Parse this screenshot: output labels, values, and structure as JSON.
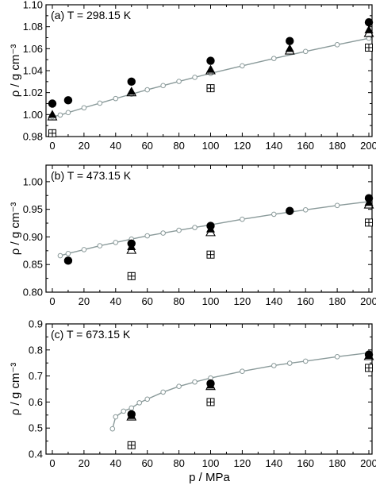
{
  "x_axis_label": "p / MPa",
  "chart_data": [
    {
      "type": "scatter",
      "title": "(a) T = 298.15 K",
      "xlabel": "",
      "ylabel": "ρ / g cm⁻³",
      "xlim": [
        -4,
        202
      ],
      "ylim": [
        0.98,
        1.1
      ],
      "xticks": [
        0,
        20,
        40,
        60,
        80,
        100,
        120,
        140,
        160,
        180,
        200
      ],
      "xtick_labels": [
        "0",
        "20",
        "40",
        "60",
        "80",
        "100",
        "120",
        "140",
        "160",
        "180",
        "200"
      ],
      "yticks": [
        0.98,
        1.0,
        1.02,
        1.04,
        1.06,
        1.08,
        1.1
      ],
      "ytick_labels": [
        "0.98",
        "1.00",
        "1.02",
        "1.04",
        "1.06",
        "1.08",
        "1.10"
      ],
      "series": [
        {
          "marker": "circle-open-line",
          "x": [
            0,
            5,
            10,
            20,
            30,
            40,
            50,
            60,
            70,
            80,
            90,
            100,
            120,
            140,
            160,
            180,
            200
          ],
          "y": [
            0.998,
            0.9996,
            1.0018,
            1.0062,
            1.0104,
            1.0146,
            1.0186,
            1.0226,
            1.0264,
            1.0302,
            1.0339,
            1.0375,
            1.0444,
            1.0511,
            1.0575,
            1.0636,
            1.0695
          ]
        },
        {
          "marker": "circle-filled",
          "x": [
            0,
            10,
            50,
            100,
            150,
            200
          ],
          "y": [
            1.01,
            1.013,
            1.03,
            1.049,
            1.067,
            1.084
          ]
        },
        {
          "marker": "triangle-filled",
          "x": [
            0,
            50,
            100,
            150,
            200
          ],
          "y": [
            1.0,
            1.021,
            1.041,
            1.06,
            1.077
          ]
        },
        {
          "marker": "triangle-open",
          "x": [
            0,
            50,
            100,
            150,
            200
          ],
          "y": [
            0.998,
            1.02,
            1.04,
            1.058,
            1.074
          ]
        },
        {
          "marker": "square-cross",
          "x": [
            0,
            100,
            200
          ],
          "y": [
            0.983,
            1.024,
            1.061
          ]
        }
      ]
    },
    {
      "type": "scatter",
      "title": "(b) T = 473.15 K",
      "xlabel": "",
      "ylabel": "ρ / g cm⁻³",
      "xlim": [
        -4,
        202
      ],
      "ylim": [
        0.8,
        1.03
      ],
      "xticks": [
        0,
        20,
        40,
        60,
        80,
        100,
        120,
        140,
        160,
        180,
        200
      ],
      "xtick_labels": [
        "0",
        "20",
        "40",
        "60",
        "80",
        "100",
        "120",
        "140",
        "160",
        "180",
        "200"
      ],
      "yticks": [
        0.8,
        0.85,
        0.9,
        0.95,
        1.0
      ],
      "ytick_labels": [
        "0.80",
        "0.85",
        "0.90",
        "0.95",
        "1.00"
      ],
      "series": [
        {
          "marker": "circle-open-line",
          "x": [
            5,
            10,
            20,
            30,
            40,
            50,
            60,
            70,
            80,
            90,
            100,
            120,
            140,
            160,
            180,
            200
          ],
          "y": [
            0.866,
            0.87,
            0.877,
            0.884,
            0.89,
            0.896,
            0.902,
            0.907,
            0.912,
            0.917,
            0.922,
            0.932,
            0.941,
            0.949,
            0.957,
            0.964
          ]
        },
        {
          "marker": "circle-filled",
          "x": [
            10,
            50,
            100,
            150,
            200
          ],
          "y": [
            0.857,
            0.888,
            0.92,
            0.947,
            0.97
          ]
        },
        {
          "marker": "triangle-filled",
          "x": [
            50,
            100,
            200
          ],
          "y": [
            0.882,
            0.914,
            0.962
          ]
        },
        {
          "marker": "triangle-open",
          "x": [
            50,
            100,
            200
          ],
          "y": [
            0.876,
            0.908,
            0.958
          ]
        },
        {
          "marker": "square-cross",
          "x": [
            50,
            100,
            200
          ],
          "y": [
            0.829,
            0.868,
            0.926
          ]
        }
      ]
    },
    {
      "type": "scatter",
      "title": "(c) T = 673.15 K",
      "xlabel": "p / MPa",
      "ylabel": "ρ / g cm⁻³",
      "xlim": [
        -4,
        202
      ],
      "ylim": [
        0.4,
        0.9
      ],
      "xticks": [
        0,
        20,
        40,
        60,
        80,
        100,
        120,
        140,
        160,
        180,
        200
      ],
      "xtick_labels": [
        "0",
        "20",
        "40",
        "60",
        "80",
        "100",
        "120",
        "140",
        "160",
        "180",
        "200"
      ],
      "yticks": [
        0.4,
        0.5,
        0.6,
        0.7,
        0.8,
        0.9
      ],
      "ytick_labels": [
        "0.4",
        "0.5",
        "0.6",
        "0.7",
        "0.8",
        "0.9"
      ],
      "series": [
        {
          "marker": "circle-open-line",
          "x": [
            38,
            40,
            45,
            50,
            55,
            60,
            70,
            80,
            90,
            100,
            120,
            140,
            150,
            160,
            180,
            200
          ],
          "y": [
            0.497,
            0.543,
            0.565,
            0.577,
            0.597,
            0.611,
            0.638,
            0.66,
            0.677,
            0.692,
            0.718,
            0.74,
            0.749,
            0.757,
            0.774,
            0.789
          ]
        },
        {
          "marker": "circle-filled",
          "x": [
            50,
            100,
            200
          ],
          "y": [
            0.553,
            0.671,
            0.782
          ]
        },
        {
          "marker": "triangle-filled",
          "x": [
            50,
            100,
            200
          ],
          "y": [
            0.547,
            0.664,
            0.778
          ]
        },
        {
          "marker": "triangle-open",
          "x": [
            50,
            100,
            200
          ],
          "y": [
            0.543,
            0.66,
            0.775
          ]
        },
        {
          "marker": "square-cross",
          "x": [
            50,
            100,
            200
          ],
          "y": [
            0.434,
            0.6,
            0.731
          ]
        }
      ]
    }
  ]
}
